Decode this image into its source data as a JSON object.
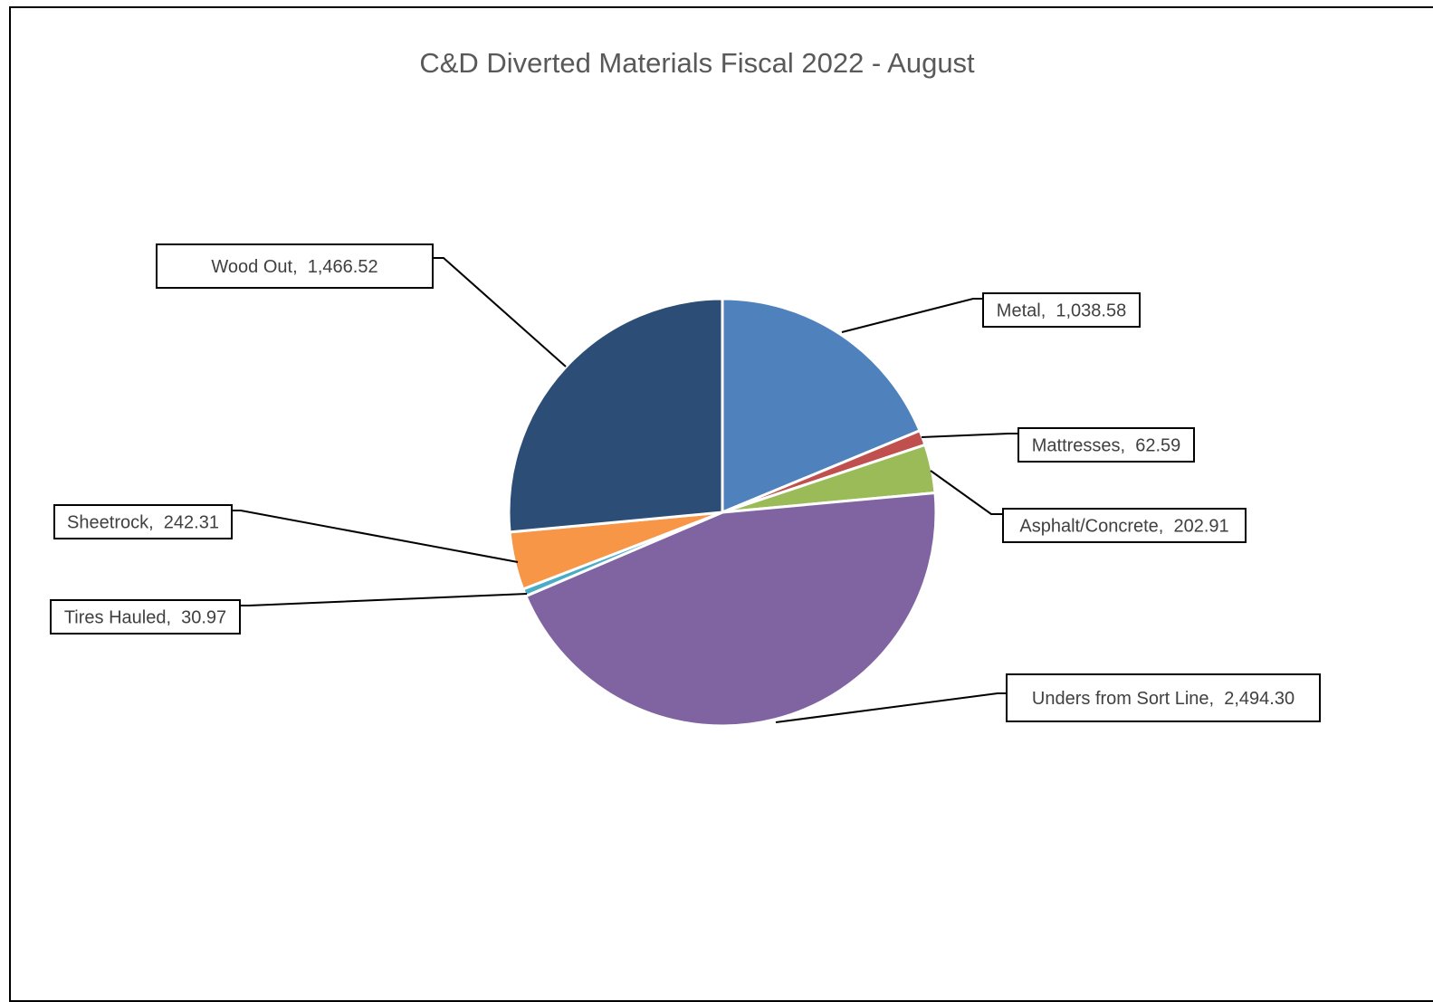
{
  "chart_data": {
    "type": "pie",
    "title": "C&D Diverted Materials Fiscal 2022 - August",
    "slices": [
      {
        "label": "Metal",
        "value": 1038.58,
        "value_text": "1,038.58",
        "color": "#4f81bd"
      },
      {
        "label": "Mattresses",
        "value": 62.59,
        "value_text": "62.59",
        "color": "#c0504d"
      },
      {
        "label": "Asphalt/Concrete",
        "value": 202.91,
        "value_text": "202.91",
        "color": "#9bbb59"
      },
      {
        "label": "Unders from Sort Line",
        "value": 2494.3,
        "value_text": "2,494.30",
        "color": "#8064a2"
      },
      {
        "label": "Tires Hauled",
        "value": 30.97,
        "value_text": "30.97",
        "color": "#4bacc6"
      },
      {
        "label": "Sheetrock",
        "value": 242.31,
        "value_text": "242.31",
        "color": "#f79646"
      },
      {
        "label": "Wood Out",
        "value": 1466.52,
        "value_text": "1,466.52",
        "color": "#2c4d75"
      }
    ],
    "legend": "none",
    "data_labels": "callouts with category name and value"
  }
}
